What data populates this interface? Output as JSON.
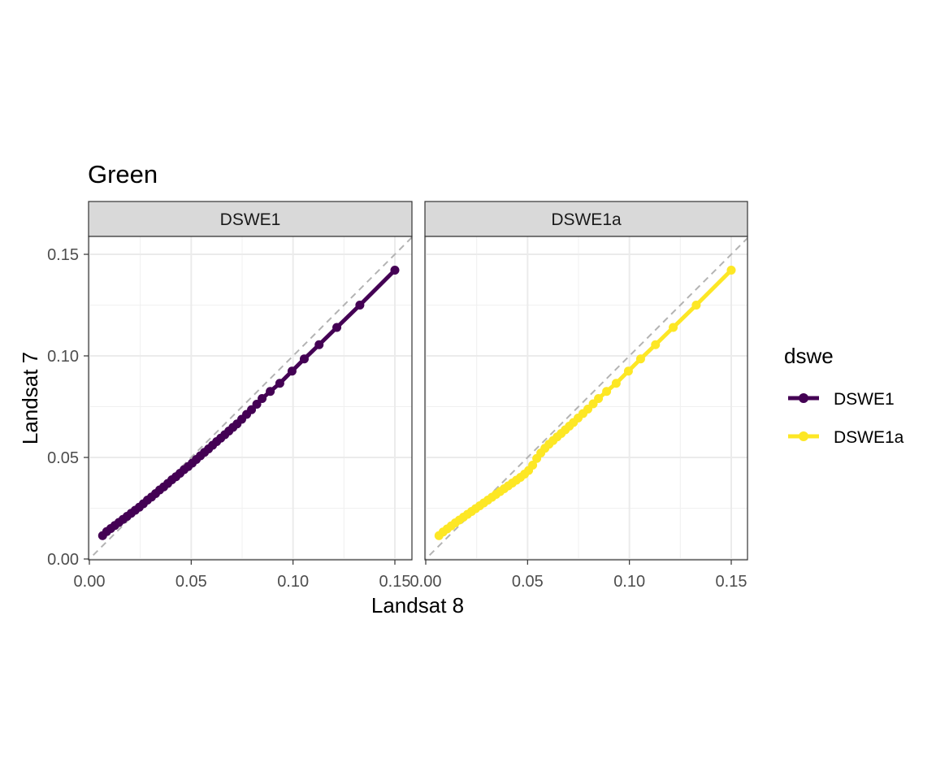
{
  "chart_data": {
    "type": "line",
    "title": "Green",
    "xlabel": "Landsat 8",
    "ylabel": "Landsat 7",
    "xlim": [
      0,
      0.15
    ],
    "ylim": [
      0,
      0.15
    ],
    "x_ticks": [
      "0.00",
      "0.05",
      "0.10",
      "0.15"
    ],
    "y_ticks": [
      "0.00",
      "0.05",
      "0.10",
      "0.15"
    ],
    "grid": true,
    "reference_line": {
      "type": "identity",
      "style": "dashed",
      "color": "#b3b3b3"
    },
    "legend": {
      "title": "dswe",
      "position": "right"
    },
    "facets": [
      "DSWE1",
      "DSWE1a"
    ],
    "series": [
      {
        "name": "DSWE1",
        "facet": "DSWE1",
        "color": "#440154",
        "x": [
          0.0065,
          0.0085,
          0.0105,
          0.0125,
          0.0145,
          0.0165,
          0.0185,
          0.0205,
          0.0225,
          0.0245,
          0.0265,
          0.0285,
          0.0305,
          0.0325,
          0.0345,
          0.0365,
          0.0385,
          0.0405,
          0.0425,
          0.0445,
          0.0465,
          0.0485,
          0.0505,
          0.0525,
          0.0545,
          0.0565,
          0.0585,
          0.0605,
          0.0625,
          0.0645,
          0.0665,
          0.0685,
          0.0705,
          0.0725,
          0.0748,
          0.0772,
          0.0796,
          0.0822,
          0.0848,
          0.0888,
          0.0935,
          0.0995,
          0.1055,
          0.1128,
          0.1215,
          0.1328,
          0.15
        ],
        "y": [
          0.0115,
          0.0135,
          0.015,
          0.0165,
          0.018,
          0.0195,
          0.021,
          0.0225,
          0.024,
          0.0255,
          0.0272,
          0.029,
          0.0305,
          0.0322,
          0.034,
          0.0355,
          0.0372,
          0.039,
          0.0405,
          0.0422,
          0.044,
          0.0455,
          0.0472,
          0.049,
          0.0508,
          0.0525,
          0.0542,
          0.056,
          0.0578,
          0.0595,
          0.0612,
          0.063,
          0.0648,
          0.0665,
          0.0688,
          0.0712,
          0.0735,
          0.0762,
          0.079,
          0.0825,
          0.0865,
          0.0925,
          0.0985,
          0.1055,
          0.114,
          0.125,
          0.1422
        ]
      },
      {
        "name": "DSWE1a",
        "facet": "DSWE1a",
        "color": "#fde725",
        "x": [
          0.0065,
          0.0085,
          0.0105,
          0.0125,
          0.0145,
          0.0165,
          0.0185,
          0.0205,
          0.0225,
          0.0245,
          0.0265,
          0.0285,
          0.0305,
          0.0325,
          0.0345,
          0.0365,
          0.0385,
          0.0405,
          0.0425,
          0.0445,
          0.0465,
          0.0485,
          0.0505,
          0.0525,
          0.0545,
          0.0565,
          0.0585,
          0.0605,
          0.0625,
          0.0645,
          0.0665,
          0.0685,
          0.0705,
          0.0725,
          0.0748,
          0.0772,
          0.0796,
          0.0822,
          0.0848,
          0.0888,
          0.0935,
          0.0995,
          0.1055,
          0.1128,
          0.1215,
          0.1328,
          0.15
        ],
        "y": [
          0.0115,
          0.0133,
          0.0148,
          0.0163,
          0.0178,
          0.0192,
          0.0206,
          0.022,
          0.0234,
          0.0248,
          0.0262,
          0.0276,
          0.029,
          0.0304,
          0.0318,
          0.0332,
          0.0346,
          0.036,
          0.0374,
          0.0388,
          0.0402,
          0.0418,
          0.0436,
          0.0462,
          0.0495,
          0.0522,
          0.0545,
          0.0565,
          0.0583,
          0.0601,
          0.0618,
          0.0636,
          0.0654,
          0.0672,
          0.0694,
          0.0716,
          0.0738,
          0.0764,
          0.079,
          0.0825,
          0.0865,
          0.0925,
          0.0985,
          0.1055,
          0.114,
          0.125,
          0.1422
        ]
      }
    ]
  }
}
